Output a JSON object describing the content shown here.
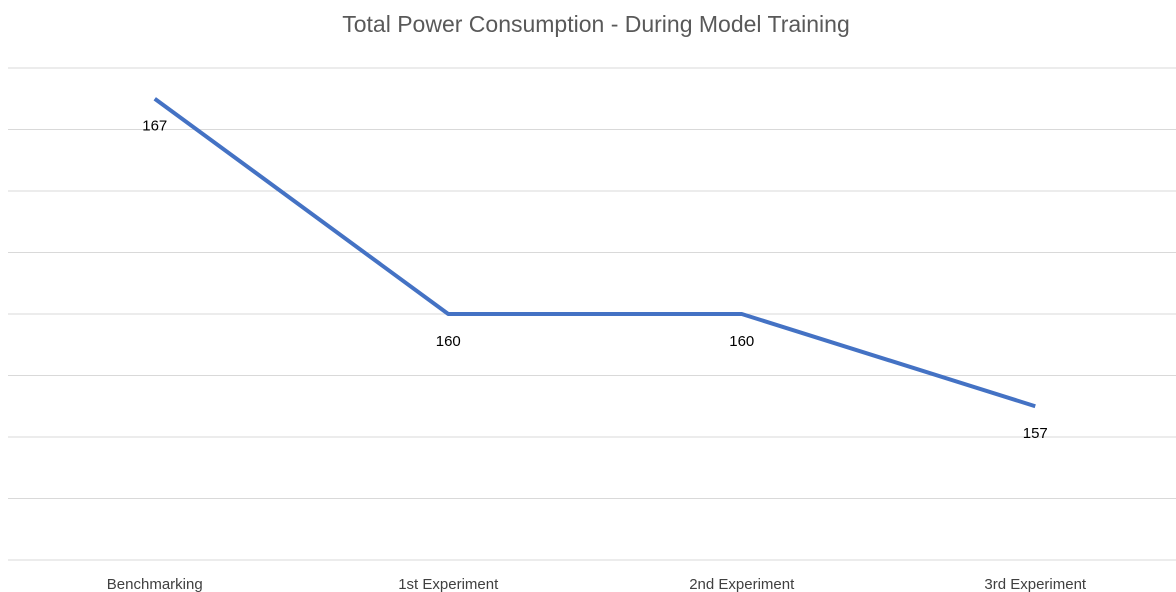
{
  "chart_data": {
    "type": "line",
    "title": "Total Power Consumption - During Model Training",
    "categories": [
      "Benchmarking",
      "1st Experiment",
      "2nd Experiment",
      "3rd Experiment"
    ],
    "series": [
      {
        "name": "Total Power Consumption",
        "color": "#4472c4",
        "values": [
          167,
          160,
          160,
          157
        ]
      }
    ],
    "ylim": [
      152,
      168
    ],
    "yticks": [
      152,
      154,
      156,
      158,
      160,
      162,
      164,
      166,
      168
    ],
    "grid": true
  }
}
